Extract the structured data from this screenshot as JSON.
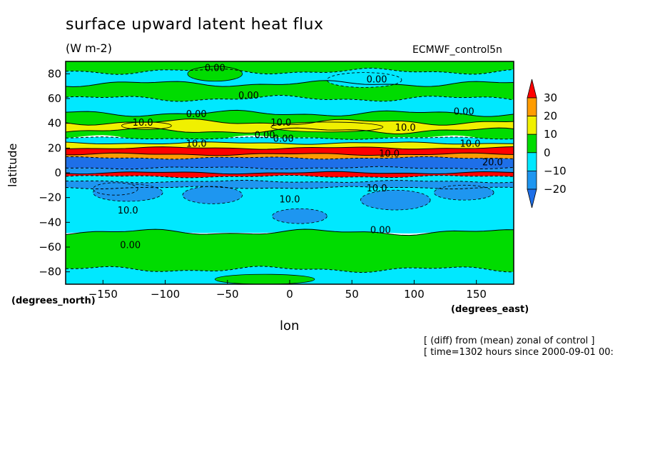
{
  "header": {
    "title": "surface upward latent heat flux",
    "units": "(W m-2)",
    "model": "ECMWF_control5n"
  },
  "footer": {
    "line1": "[ (diff) from (mean) zonal of control ]",
    "line2": "[ time=1302 hours since 2000-09-01 00:"
  },
  "colors": {
    "c_lt_m20": "#1e6fe8",
    "c_m20_m10": "#1e96f0",
    "c_m10_0": "#00e8ff",
    "c_0_10": "#00dc00",
    "c_10_20": "#f0f000",
    "c_20_30": "#ff9c00",
    "c_gt_30": "#ff0000"
  },
  "chart_data": {
    "type": "heatmap",
    "plot_style": "filled contour map with labelled contour lines",
    "xlabel": "lon",
    "ylabel": "latitude",
    "x_units": "(degrees_east)",
    "y_units": "(degrees_north)",
    "xlim": [
      -180,
      180
    ],
    "ylim": [
      -90,
      90
    ],
    "x_ticks": [
      -150,
      -100,
      -50,
      0,
      50,
      100,
      150
    ],
    "y_ticks": [
      80,
      60,
      40,
      20,
      0,
      -20,
      -40,
      -60,
      -80
    ],
    "x_tick_labels": [
      "−150",
      "−100",
      "−50",
      "0",
      "50",
      "100",
      "150"
    ],
    "y_tick_labels": [
      "80",
      "60",
      "40",
      "20",
      "0",
      "−20",
      "−40",
      "−60",
      "−80"
    ],
    "colorbar": {
      "levels": [
        -20,
        -10,
        0,
        10,
        20,
        30
      ],
      "labels": [
        "30",
        "20",
        "10",
        "0",
        "−10",
        "−20"
      ],
      "extend": "both"
    },
    "zonal_bands": [
      {
        "lat_from": 90,
        "lat_to": 82,
        "value": 2
      },
      {
        "lat_from": 82,
        "lat_to": 72,
        "value": -5
      },
      {
        "lat_from": 72,
        "lat_to": 60,
        "value": 3
      },
      {
        "lat_from": 60,
        "lat_to": 48,
        "value": -4
      },
      {
        "lat_from": 48,
        "lat_to": 41,
        "value": 5
      },
      {
        "lat_from": 41,
        "lat_to": 34,
        "value": 13
      },
      {
        "lat_from": 34,
        "lat_to": 28,
        "value": 4
      },
      {
        "lat_from": 28,
        "lat_to": 24,
        "value": -4
      },
      {
        "lat_from": 24,
        "lat_to": 20,
        "value": 15
      },
      {
        "lat_from": 20,
        "lat_to": 15,
        "value": 35
      },
      {
        "lat_from": 15,
        "lat_to": 12,
        "value": 25
      },
      {
        "lat_from": 12,
        "lat_to": 4,
        "value": -25
      },
      {
        "lat_from": 4,
        "lat_to": 0,
        "value": -12
      },
      {
        "lat_from": 0,
        "lat_to": -3,
        "value": 35
      },
      {
        "lat_from": -3,
        "lat_to": -7,
        "value": -4
      },
      {
        "lat_from": -7,
        "lat_to": -12,
        "value": -12
      },
      {
        "lat_from": -12,
        "lat_to": -48,
        "value": -5
      },
      {
        "lat_from": -48,
        "lat_to": -78,
        "value": 4
      },
      {
        "lat_from": -78,
        "lat_to": -90,
        "value": -3
      }
    ],
    "patches": [
      {
        "lon": -130,
        "lat": -16,
        "dlon": 28,
        "dlat": 7,
        "value": -15
      },
      {
        "lon": -62,
        "lat": -18,
        "dlon": 24,
        "dlat": 7,
        "value": -15
      },
      {
        "lon": 8,
        "lat": -35,
        "dlon": 22,
        "dlat": 6,
        "value": -15
      },
      {
        "lon": 85,
        "lat": -22,
        "dlon": 28,
        "dlat": 8,
        "value": -15
      },
      {
        "lon": 140,
        "lat": -16,
        "dlon": 24,
        "dlat": 6,
        "value": -15
      },
      {
        "lon": -140,
        "lat": -13,
        "dlon": 18,
        "dlat": 5,
        "value": -15
      },
      {
        "lon": 30,
        "lat": 37,
        "dlon": 45,
        "dlat": 4,
        "value": 12
      },
      {
        "lon": -115,
        "lat": 38,
        "dlon": 20,
        "dlat": 3,
        "value": 12
      },
      {
        "lon": -60,
        "lat": 80,
        "dlon": 22,
        "dlat": 6,
        "value": 3
      },
      {
        "lon": 60,
        "lat": 75,
        "dlon": 30,
        "dlat": 6,
        "value": -5
      },
      {
        "lon": -20,
        "lat": -86,
        "dlon": 40,
        "dlat": 4,
        "value": 3
      }
    ],
    "contour_labels": [
      {
        "text": "0.00",
        "lon": -60,
        "lat": 85
      },
      {
        "text": "0.00",
        "lon": 70,
        "lat": 76
      },
      {
        "text": "0.00",
        "lon": -33,
        "lat": 63
      },
      {
        "text": "0.00",
        "lon": -75,
        "lat": 48
      },
      {
        "text": "0.00",
        "lon": 140,
        "lat": 50
      },
      {
        "text": "0.00",
        "lon": -20,
        "lat": 31
      },
      {
        "text": "0.00",
        "lon": -5,
        "lat": 28
      },
      {
        "text": "10.0",
        "lon": -118,
        "lat": 41
      },
      {
        "text": "10.0",
        "lon": -7,
        "lat": 41
      },
      {
        "text": "10.0",
        "lon": 93,
        "lat": 37
      },
      {
        "text": "10.0",
        "lon": -75,
        "lat": 24
      },
      {
        "text": "10.0",
        "lon": 145,
        "lat": 24
      },
      {
        "text": "10.0",
        "lon": 80,
        "lat": 16
      },
      {
        "text": "20.0",
        "lon": 163,
        "lat": 9
      },
      {
        "text": "10.0",
        "lon": 70,
        "lat": -12
      },
      {
        "text": "10.0",
        "lon": -130,
        "lat": -30
      },
      {
        "text": "10.0",
        "lon": 0,
        "lat": -21
      },
      {
        "text": "0.00",
        "lon": 73,
        "lat": -46
      },
      {
        "text": "0.00",
        "lon": -128,
        "lat": -58
      }
    ]
  }
}
